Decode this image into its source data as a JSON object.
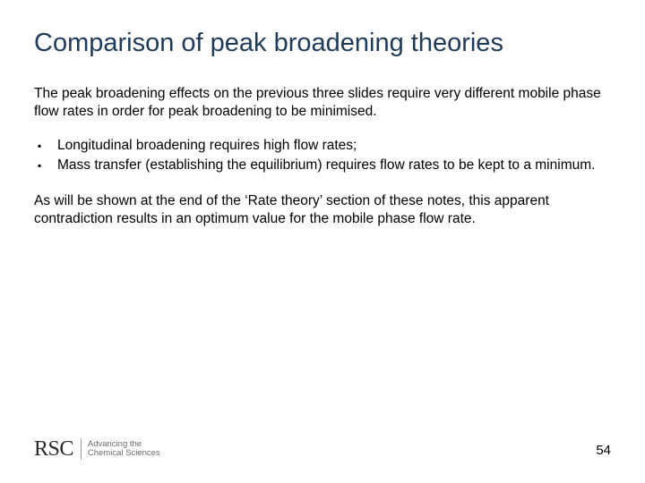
{
  "title": "Comparison of peak broadening theories",
  "intro": "The peak broadening effects on the previous three slides require very different mobile phase flow rates in order for peak broadening to be minimised.",
  "bullets": [
    "Longitudinal broadening requires high flow rates;",
    "Mass transfer (establishing the equilibrium) requires flow rates to be kept to a minimum."
  ],
  "outro": "As will be shown at the end of the ‘Rate theory’ section of these notes, this apparent contradiction results in an optimum value for the mobile phase flow rate.",
  "footer": {
    "logo_mark": "RSC",
    "logo_tag_line1": "Advancing the",
    "logo_tag_line2": "Chemical Sciences",
    "page_number": "54"
  },
  "colors": {
    "title": "#1f3b5a",
    "body": "#000000",
    "background": "#ffffff",
    "logo_text": "#2a2a2a",
    "logo_tag": "#6a6a6a"
  },
  "typography": {
    "title_fontsize": 29,
    "body_fontsize": 15.5,
    "bullet_mark": "▪",
    "logo_fontsize": 24,
    "tag_fontsize": 9.5,
    "pagenum_fontsize": 15
  }
}
